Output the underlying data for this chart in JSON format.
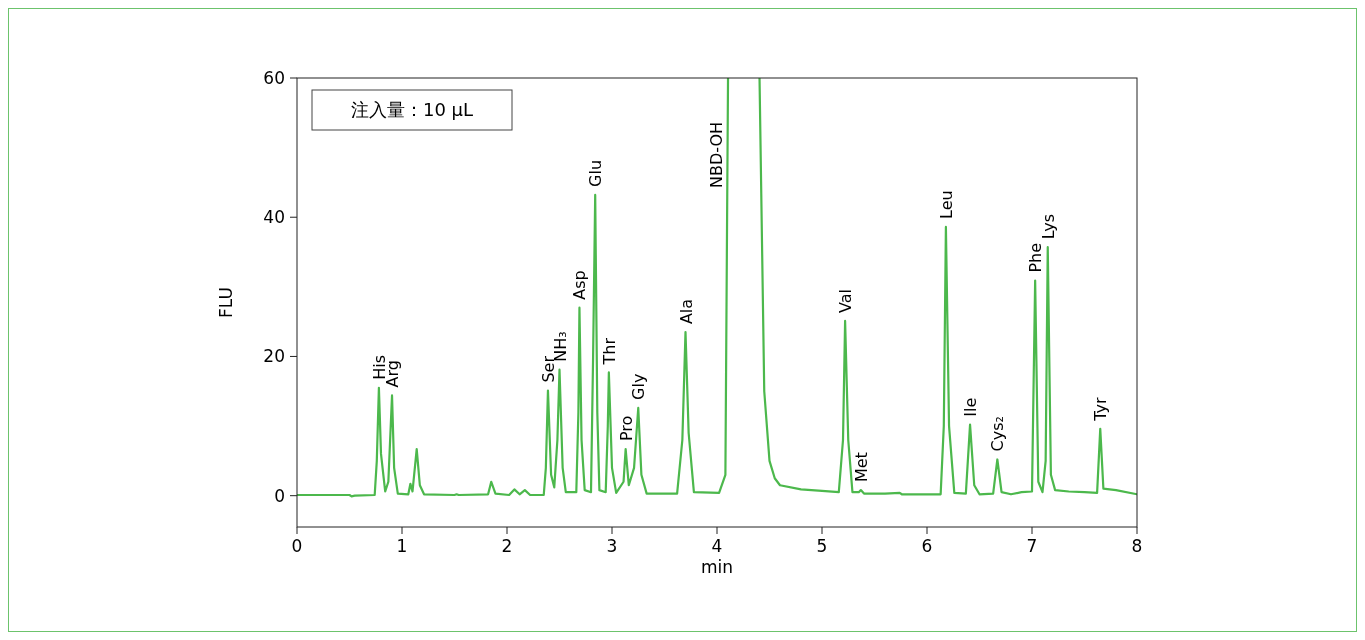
{
  "chart_data": {
    "type": "line",
    "xlabel": "min",
    "ylabel": "FLU",
    "xlim": [
      0,
      8
    ],
    "xticks": [
      0,
      1,
      2,
      3,
      4,
      5,
      6,
      7,
      8
    ],
    "ylim": [
      -4.5,
      60
    ],
    "yticks": [
      0,
      20,
      40,
      60
    ],
    "grid": false,
    "marker": "none",
    "line_style": "solid",
    "series": [
      {
        "color": "#4cb84c",
        "x": [
          0,
          0.5,
          0.52,
          0.55,
          0.74,
          0.76,
          0.78,
          0.8,
          0.84,
          0.87,
          0.905,
          0.925,
          0.96,
          1.06,
          1.08,
          1.1,
          1.14,
          1.17,
          1.21,
          1.5,
          1.52,
          1.54,
          1.82,
          1.85,
          1.89,
          2.02,
          2.07,
          2.12,
          2.17,
          2.22,
          2.35,
          2.37,
          2.39,
          2.42,
          2.45,
          2.48,
          2.5,
          2.53,
          2.56,
          2.66,
          2.68,
          2.69,
          2.71,
          2.74,
          2.8,
          2.82,
          2.84,
          2.86,
          2.88,
          2.94,
          2.96,
          2.97,
          3,
          3.04,
          3.11,
          3.13,
          3.16,
          3.21,
          3.25,
          3.28,
          3.33,
          3.62,
          3.67,
          3.7,
          3.73,
          3.78,
          4.02,
          4.08,
          4.105,
          4.25,
          4.405,
          4.45,
          4.5,
          4.55,
          4.6,
          4.8,
          5,
          5.16,
          5.2,
          5.22,
          5.25,
          5.29,
          5.35,
          5.37,
          5.4,
          5.6,
          5.74,
          5.76,
          6.13,
          6.16,
          6.18,
          6.21,
          6.26,
          6.37,
          6.41,
          6.45,
          6.5,
          6.63,
          6.67,
          6.71,
          6.8,
          6.9,
          7,
          7.03,
          7.06,
          7.1,
          7.13,
          7.15,
          7.18,
          7.22,
          7.35,
          7.5,
          7.62,
          7.65,
          7.68,
          7.8,
          8
        ],
        "values": [
          0.1,
          0.1,
          -0.1,
          0,
          0.1,
          5,
          15.5,
          6,
          0.6,
          2,
          14.4,
          4,
          0.3,
          0.2,
          1.7,
          0.6,
          6.7,
          1.5,
          0.2,
          0.1,
          0.2,
          0.1,
          0.2,
          2,
          0.3,
          0.1,
          0.9,
          0.2,
          0.8,
          0.1,
          0.1,
          4,
          15.1,
          3,
          1.2,
          8,
          18.1,
          4,
          0.5,
          0.5,
          12,
          27,
          8,
          0.8,
          0.5,
          20,
          43.2,
          12,
          0.8,
          0.5,
          10,
          17.7,
          4,
          0.4,
          2,
          6.7,
          1.5,
          4,
          12.6,
          3,
          0.3,
          0.3,
          8,
          23.5,
          9,
          0.5,
          0.4,
          3,
          60,
          null,
          60,
          15,
          5,
          2.5,
          1.5,
          0.9,
          0.7,
          0.5,
          8,
          25.1,
          8,
          0.5,
          0.5,
          0.8,
          0.3,
          0.3,
          0.4,
          0.2,
          0.2,
          10,
          38.6,
          10,
          0.4,
          0.3,
          10.2,
          1.5,
          0.2,
          0.3,
          5.2,
          0.5,
          0.2,
          0.5,
          0.6,
          30.9,
          2,
          0.5,
          5,
          35.7,
          3,
          0.8,
          0.6,
          0.5,
          0.4,
          9.6,
          1,
          0.8,
          0.2
        ]
      }
    ],
    "annotations": [
      "注入量：10 μL",
      {
        "text": "His",
        "x": 0.78,
        "y": 15.5
      },
      {
        "text": "Arg",
        "x": 0.905,
        "y": 14.4
      },
      {
        "text": "Ser",
        "x": 2.39,
        "y": 15.1
      },
      {
        "text": "NH₃",
        "x": 2.5,
        "y": 18.1
      },
      {
        "text": "Asp",
        "x": 2.69,
        "y": 27
      },
      {
        "text": "Glu",
        "x": 2.84,
        "y": 43.2
      },
      {
        "text": "Thr",
        "x": 2.97,
        "y": 17.7
      },
      {
        "text": "Pro",
        "x": 3.13,
        "y": 6.7
      },
      {
        "text": "Gly",
        "x": 3.25,
        "y": 12.6
      },
      {
        "text": "Ala",
        "x": 3.7,
        "y": 23.5
      },
      {
        "text": "NBD-OH",
        "x": 4.105,
        "y": 60
      },
      {
        "text": "Val",
        "x": 5.22,
        "y": 25.1
      },
      {
        "text": "Met",
        "x": 5.37,
        "y": 0.8
      },
      {
        "text": "Leu",
        "x": 6.18,
        "y": 38.6
      },
      {
        "text": "Ile",
        "x": 6.41,
        "y": 10.2
      },
      {
        "text": "Cys₂",
        "x": 6.67,
        "y": 5.2
      },
      {
        "text": "Phe",
        "x": 7.03,
        "y": 30.9
      },
      {
        "text": "Lys",
        "x": 7.15,
        "y": 35.7
      },
      {
        "text": "Tyr",
        "x": 7.65,
        "y": 9.6
      }
    ]
  }
}
